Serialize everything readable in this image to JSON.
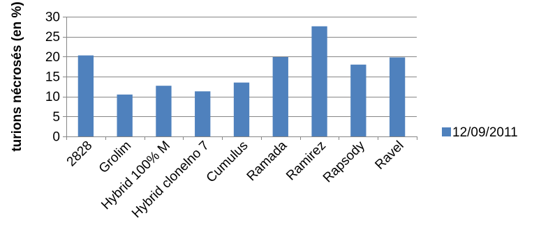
{
  "chart_data": {
    "type": "bar",
    "categories": [
      "2828",
      "Grolim",
      "Hybrid 100% M",
      "Hybrid clonelno 7",
      "Cumulus",
      "Ramada",
      "Ramirez",
      "Rapsody",
      "Ravel"
    ],
    "series": [
      {
        "name": "12/09/2011",
        "values": [
          20.3,
          10.5,
          12.7,
          11.3,
          13.5,
          19.9,
          27.6,
          18.0,
          19.8
        ],
        "color": "#4f81bd"
      }
    ],
    "title": "",
    "xlabel": "",
    "ylabel": "turions nécrosés (en %)",
    "ylim": [
      0,
      30
    ],
    "yticks": [
      0,
      5,
      10,
      15,
      20,
      25,
      30
    ],
    "grid": true,
    "legend_position": "right"
  }
}
